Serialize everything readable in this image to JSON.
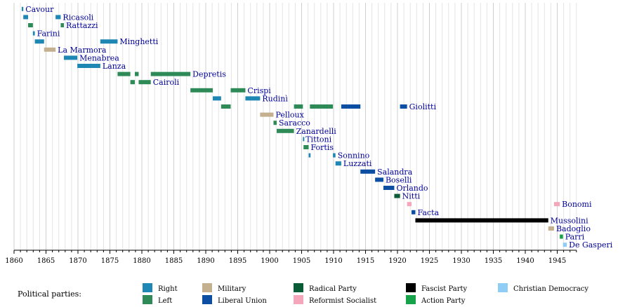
{
  "chart_data": {
    "type": "timeline",
    "title": "",
    "xlabel": "",
    "ylabel": "",
    "xlim": [
      1860,
      1948
    ],
    "grid": "vertical-yearly",
    "x_ticks": [
      1860,
      1865,
      1870,
      1875,
      1880,
      1885,
      1890,
      1895,
      1900,
      1905,
      1910,
      1915,
      1920,
      1925,
      1930,
      1935,
      1940,
      1945
    ],
    "parties": [
      {
        "id": "right",
        "name": "Right",
        "color": "#1f87b4"
      },
      {
        "id": "left",
        "name": "Left",
        "color": "#2e8b57"
      },
      {
        "id": "military",
        "name": "Military",
        "color": "#c4b08f"
      },
      {
        "id": "liberal",
        "name": "Liberal Union",
        "color": "#0b4ea2"
      },
      {
        "id": "radical",
        "name": "Radical Party",
        "color": "#0a5c36"
      },
      {
        "id": "reformist",
        "name": "Reformist Socialist",
        "color": "#f4a6bb"
      },
      {
        "id": "fascist",
        "name": "Fascist Party",
        "color": "#000000"
      },
      {
        "id": "action",
        "name": "Action Party",
        "color": "#16a34a"
      },
      {
        "id": "dc",
        "name": "Christian Democracy",
        "color": "#8fcdf5"
      }
    ],
    "rows": [
      {
        "name": "Cavour",
        "label_after": 1861.45,
        "terms": [
          {
            "start": 1861.2,
            "end": 1861.45,
            "party": "right"
          }
        ]
      },
      {
        "name": "Ricasoli",
        "label_after": 1867.3,
        "terms": [
          {
            "start": 1861.45,
            "end": 1862.2,
            "party": "right"
          },
          {
            "start": 1866.5,
            "end": 1867.3,
            "party": "right"
          }
        ]
      },
      {
        "name": "Rattazzi",
        "label_after": 1867.8,
        "terms": [
          {
            "start": 1862.2,
            "end": 1862.95,
            "party": "left"
          },
          {
            "start": 1867.3,
            "end": 1867.8,
            "party": "left"
          }
        ]
      },
      {
        "name": "Farini",
        "label_after": 1863.25,
        "terms": [
          {
            "start": 1862.95,
            "end": 1863.25,
            "party": "right"
          }
        ]
      },
      {
        "name": "Minghetti",
        "label_after": 1876.2,
        "terms": [
          {
            "start": 1863.25,
            "end": 1864.7,
            "party": "right"
          },
          {
            "start": 1873.5,
            "end": 1876.2,
            "party": "right"
          }
        ]
      },
      {
        "name": "La Marmora",
        "label_after": 1866.5,
        "terms": [
          {
            "start": 1864.7,
            "end": 1866.5,
            "party": "military"
          }
        ]
      },
      {
        "name": "Menabrea",
        "label_after": 1869.9,
        "terms": [
          {
            "start": 1867.8,
            "end": 1869.9,
            "party": "right"
          }
        ]
      },
      {
        "name": "Lanza",
        "label_after": 1873.5,
        "terms": [
          {
            "start": 1869.9,
            "end": 1873.5,
            "party": "right"
          }
        ]
      },
      {
        "name": "Depretis",
        "label_after": 1887.6,
        "terms": [
          {
            "start": 1876.2,
            "end": 1878.2,
            "party": "left"
          },
          {
            "start": 1878.9,
            "end": 1879.5,
            "party": "left"
          },
          {
            "start": 1881.4,
            "end": 1887.6,
            "party": "left"
          }
        ]
      },
      {
        "name": "Cairoli",
        "label_after": 1881.4,
        "terms": [
          {
            "start": 1878.2,
            "end": 1878.9,
            "party": "left"
          },
          {
            "start": 1879.5,
            "end": 1881.4,
            "party": "left"
          }
        ]
      },
      {
        "name": "Crispi",
        "label_after": 1896.2,
        "terms": [
          {
            "start": 1887.6,
            "end": 1891.1,
            "party": "left"
          },
          {
            "start": 1893.9,
            "end": 1896.2,
            "party": "left"
          }
        ]
      },
      {
        "name": "Rudinì",
        "label_after": 1898.5,
        "terms": [
          {
            "start": 1891.1,
            "end": 1892.4,
            "party": "right"
          },
          {
            "start": 1896.2,
            "end": 1898.5,
            "party": "right"
          }
        ]
      },
      {
        "name": "Giolitti",
        "label_after": 1921.5,
        "terms": [
          {
            "start": 1892.4,
            "end": 1893.9,
            "party": "left"
          },
          {
            "start": 1903.8,
            "end": 1905.2,
            "party": "left"
          },
          {
            "start": 1906.3,
            "end": 1909.9,
            "party": "left"
          },
          {
            "start": 1911.2,
            "end": 1914.2,
            "party": "liberal"
          },
          {
            "start": 1920.4,
            "end": 1921.5,
            "party": "liberal"
          }
        ]
      },
      {
        "name": "Pelloux",
        "label_after": 1900.6,
        "terms": [
          {
            "start": 1898.5,
            "end": 1900.6,
            "party": "military"
          }
        ]
      },
      {
        "name": "Saracco",
        "label_after": 1901.1,
        "terms": [
          {
            "start": 1900.6,
            "end": 1901.1,
            "party": "left"
          }
        ]
      },
      {
        "name": "Zanardelli",
        "label_after": 1903.8,
        "terms": [
          {
            "start": 1901.1,
            "end": 1903.8,
            "party": "left"
          }
        ]
      },
      {
        "name": "Tittoni",
        "label_after": 1905.3,
        "terms": [
          {
            "start": 1905.2,
            "end": 1905.3,
            "party": "right"
          }
        ]
      },
      {
        "name": "Fortis",
        "label_after": 1906.1,
        "terms": [
          {
            "start": 1905.3,
            "end": 1906.1,
            "party": "left"
          }
        ]
      },
      {
        "name": "Sonnino",
        "label_after": 1910.3,
        "terms": [
          {
            "start": 1906.1,
            "end": 1906.4,
            "party": "right"
          },
          {
            "start": 1909.9,
            "end": 1910.3,
            "party": "right"
          }
        ]
      },
      {
        "name": "Luzzati",
        "label_after": 1911.2,
        "terms": [
          {
            "start": 1910.3,
            "end": 1911.2,
            "party": "right"
          }
        ]
      },
      {
        "name": "Salandra",
        "label_after": 1916.5,
        "terms": [
          {
            "start": 1914.2,
            "end": 1916.5,
            "party": "liberal"
          }
        ]
      },
      {
        "name": "Boselli",
        "label_after": 1917.8,
        "terms": [
          {
            "start": 1916.5,
            "end": 1917.8,
            "party": "liberal"
          }
        ]
      },
      {
        "name": "Orlando",
        "label_after": 1919.5,
        "terms": [
          {
            "start": 1917.8,
            "end": 1919.5,
            "party": "liberal"
          }
        ]
      },
      {
        "name": "Nitti",
        "label_after": 1920.4,
        "terms": [
          {
            "start": 1919.5,
            "end": 1920.4,
            "party": "radical"
          }
        ]
      },
      {
        "name": "Bonomi",
        "label_after": 1945.4,
        "terms": [
          {
            "start": 1921.5,
            "end": 1922.2,
            "party": "reformist"
          },
          {
            "start": 1944.5,
            "end": 1945.4,
            "party": "reformist"
          }
        ]
      },
      {
        "name": "Facta",
        "label_after": 1922.8,
        "terms": [
          {
            "start": 1922.2,
            "end": 1922.8,
            "party": "liberal"
          }
        ]
      },
      {
        "name": "Mussolini",
        "label_after": 1943.6,
        "terms": [
          {
            "start": 1922.8,
            "end": 1943.6,
            "party": "fascist"
          }
        ]
      },
      {
        "name": "Badoglio",
        "label_after": 1944.5,
        "terms": [
          {
            "start": 1943.6,
            "end": 1944.5,
            "party": "military"
          }
        ]
      },
      {
        "name": "Parri",
        "label_after": 1945.9,
        "terms": [
          {
            "start": 1945.4,
            "end": 1945.9,
            "party": "action"
          }
        ]
      },
      {
        "name": "De Gasperi",
        "label_after": 1946.5,
        "terms": [
          {
            "start": 1945.9,
            "end": 1946.5,
            "party": "dc"
          }
        ]
      }
    ]
  },
  "legend": {
    "title": "Political parties:",
    "placement": "bottom",
    "items": [
      {
        "name": "Right",
        "color": "#1f87b4"
      },
      {
        "name": "Left",
        "color": "#2e8b57"
      },
      {
        "name": "Military",
        "color": "#c4b08f"
      },
      {
        "name": "Liberal Union",
        "color": "#0b4ea2"
      },
      {
        "name": "Radical Party",
        "color": "#0a5c36"
      },
      {
        "name": "Reformist Socialist",
        "color": "#f4a6bb"
      },
      {
        "name": "Fascist Party",
        "color": "#000000"
      },
      {
        "name": "Action Party",
        "color": "#16a34a"
      },
      {
        "name": "Christian Democracy",
        "color": "#8fcdf5"
      }
    ]
  }
}
